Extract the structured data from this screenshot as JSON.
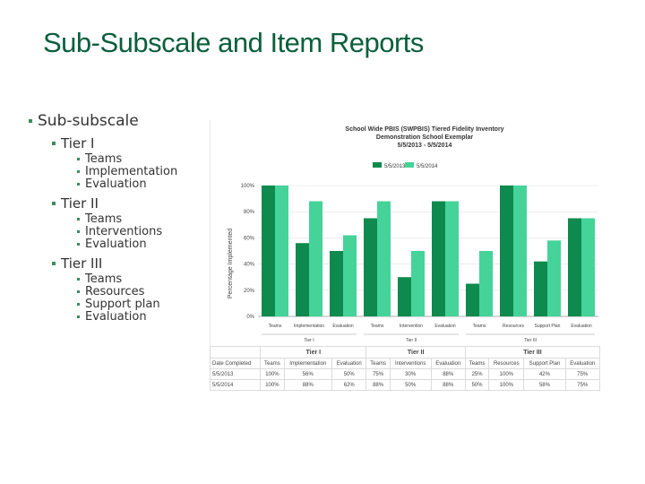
{
  "slide": {
    "title": "Sub-Subscale and Item Reports"
  },
  "outline": {
    "top": "Sub-subscale",
    "tiers": [
      {
        "label": "Tier I",
        "items": [
          "Teams",
          "Implementation",
          "Evaluation"
        ]
      },
      {
        "label": "Tier II",
        "items": [
          "Teams",
          "Interventions",
          "Evaluation"
        ]
      },
      {
        "label": "Tier III",
        "items": [
          "Teams",
          "Resources",
          "Support plan",
          "Evaluation"
        ]
      }
    ]
  },
  "colors": {
    "title": "#0b5f3c",
    "series_dark": "#0e8a4e",
    "series_light": "#45d39a",
    "bullet": "#3a8c5f"
  },
  "chart_data": {
    "type": "bar",
    "title": "School Wide PBIS (SWPBIS) Tiered Fidelity Inventory",
    "subtitle_1": "Demonstration School Exemplar",
    "subtitle_2": "5/5/2013 - 5/5/2014",
    "ylabel": "Percentage Implemented",
    "ylim": [
      0,
      100
    ],
    "yticks": [
      "0%",
      "20%",
      "40%",
      "60%",
      "80%",
      "100%"
    ],
    "legend_position": "top",
    "categories": [
      "Teams",
      "Implementation",
      "Evaluation",
      "Teams",
      "Intervention",
      "Evaluation",
      "Teams",
      "Resources",
      "Support Plan",
      "Evaluation"
    ],
    "tier_labels": [
      "Tier I",
      "Tier II",
      "Tier III"
    ],
    "series": [
      {
        "name": "5/5/2013",
        "color": "#0e8a4e",
        "values": [
          100,
          56,
          50,
          75,
          30,
          88,
          25,
          100,
          42,
          75
        ]
      },
      {
        "name": "5/5/2014",
        "color": "#45d39a",
        "values": [
          100,
          88,
          62,
          88,
          50,
          88,
          50,
          100,
          58,
          75
        ]
      }
    ]
  },
  "table": {
    "tier_headers": [
      "Tier I",
      "Tier II",
      "Tier III"
    ],
    "corner_label": "Date Completed",
    "columns": [
      "Teams",
      "Implementation",
      "Evaluation",
      "Teams",
      "Interventions",
      "Evaluation",
      "Teams",
      "Resources",
      "Support Plan",
      "Evaluation"
    ],
    "rows": [
      {
        "date": "5/5/2013",
        "values": [
          "100%",
          "56%",
          "50%",
          "75%",
          "30%",
          "88%",
          "25%",
          "100%",
          "42%",
          "75%"
        ]
      },
      {
        "date": "5/5/2014",
        "values": [
          "100%",
          "88%",
          "62%",
          "88%",
          "50%",
          "88%",
          "50%",
          "100%",
          "58%",
          "75%"
        ]
      }
    ]
  }
}
